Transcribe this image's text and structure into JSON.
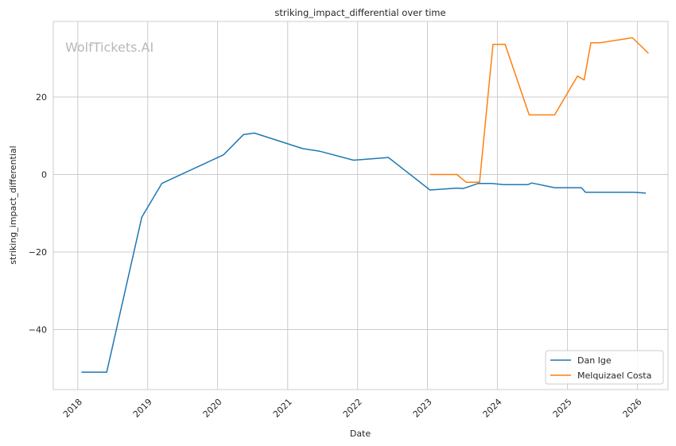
{
  "chart_data": {
    "type": "line",
    "title": "striking_impact_differential over time",
    "xlabel": "Date",
    "ylabel": "striking_impact_differential",
    "watermark": "WolfTickets.AI",
    "x_axis": "date",
    "xlim": [
      "2017-08-26",
      "2026-06-10"
    ],
    "ylim": [
      -55.5,
      39.5
    ],
    "x_ticks": [
      "2018",
      "2019",
      "2020",
      "2021",
      "2022",
      "2023",
      "2024",
      "2025",
      "2026"
    ],
    "y_ticks": [
      -40,
      -20,
      0,
      20
    ],
    "y_tick_labels": [
      "−40",
      "−20",
      "0",
      "20"
    ],
    "grid": true,
    "legend_position": "lower-right",
    "series": [
      {
        "name": "Dan Ige",
        "color": "#1f77b4",
        "points": [
          {
            "x": "2018-01-20",
            "y": -51.0
          },
          {
            "x": "2018-06-01",
            "y": -51.0
          },
          {
            "x": "2018-12-01",
            "y": -11.0
          },
          {
            "x": "2019-03-16",
            "y": -2.3
          },
          {
            "x": "2020-02-01",
            "y": 5.1
          },
          {
            "x": "2020-05-15",
            "y": 10.3
          },
          {
            "x": "2020-07-11",
            "y": 10.7
          },
          {
            "x": "2021-03-20",
            "y": 6.7
          },
          {
            "x": "2021-06-19",
            "y": 6.0
          },
          {
            "x": "2021-12-11",
            "y": 3.7
          },
          {
            "x": "2022-06-11",
            "y": 4.4
          },
          {
            "x": "2023-01-14",
            "y": -4.0
          },
          {
            "x": "2023-06-03",
            "y": -3.5
          },
          {
            "x": "2023-07-08",
            "y": -3.6
          },
          {
            "x": "2023-09-23",
            "y": -2.3
          },
          {
            "x": "2023-12-02",
            "y": -2.3
          },
          {
            "x": "2024-02-03",
            "y": -2.6
          },
          {
            "x": "2024-06-08",
            "y": -2.6
          },
          {
            "x": "2024-06-29",
            "y": -2.2
          },
          {
            "x": "2024-10-26",
            "y": -3.4
          },
          {
            "x": "2025-03-15",
            "y": -3.4
          },
          {
            "x": "2025-04-05",
            "y": -4.6
          },
          {
            "x": "2025-06-14",
            "y": -4.6
          },
          {
            "x": "2025-12-13",
            "y": -4.6
          },
          {
            "x": "2026-02-14",
            "y": -4.8
          }
        ]
      },
      {
        "name": "Melquizael Costa",
        "color": "#ff7f0e",
        "points": [
          {
            "x": "2023-01-14",
            "y": 0.0
          },
          {
            "x": "2023-06-03",
            "y": 0.0
          },
          {
            "x": "2023-07-22",
            "y": -2.0
          },
          {
            "x": "2023-09-30",
            "y": -2.0
          },
          {
            "x": "2023-12-09",
            "y": 33.6
          },
          {
            "x": "2024-02-10",
            "y": 33.6
          },
          {
            "x": "2024-06-15",
            "y": 15.4
          },
          {
            "x": "2024-10-26",
            "y": 15.4
          },
          {
            "x": "2025-02-22",
            "y": 25.4
          },
          {
            "x": "2025-03-29",
            "y": 24.4
          },
          {
            "x": "2025-05-03",
            "y": 34.0
          },
          {
            "x": "2025-06-21",
            "y": 34.0
          },
          {
            "x": "2025-12-06",
            "y": 35.3
          },
          {
            "x": "2026-02-28",
            "y": 31.3
          }
        ]
      }
    ]
  }
}
